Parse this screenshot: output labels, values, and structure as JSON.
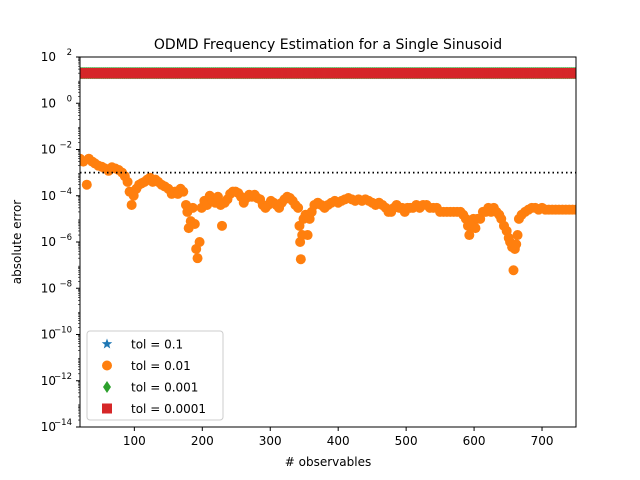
{
  "chart_data": {
    "type": "scatter",
    "title": "ODMD Frequency Estimation for a Single Sinusoid",
    "xlabel": "# observables",
    "ylabel": "absolute error",
    "xlim": [
      20,
      750
    ],
    "ylim_log10": [
      -14,
      2
    ],
    "yscale": "log",
    "x_ticks": [
      100,
      200,
      300,
      400,
      500,
      600,
      700
    ],
    "x_tick_labels": [
      "100",
      "200",
      "300",
      "400",
      "500",
      "600",
      "700"
    ],
    "y_ticks_log10": [
      2,
      0,
      -2,
      -4,
      -6,
      -8,
      -10,
      -12,
      -14
    ],
    "y_tick_labels": [
      {
        "base": "10",
        "exp": "2"
      },
      {
        "base": "10",
        "exp": "0"
      },
      {
        "base": "10",
        "exp": "−2"
      },
      {
        "base": "10",
        "exp": "−4"
      },
      {
        "base": "10",
        "exp": "−6"
      },
      {
        "base": "10",
        "exp": "−8"
      },
      {
        "base": "10",
        "exp": "−10"
      },
      {
        "base": "10",
        "exp": "−12"
      },
      {
        "base": "10",
        "exp": "−14"
      }
    ],
    "reference_line": {
      "y": 0.001,
      "style": "dotted",
      "color": "#000000"
    },
    "grid": false,
    "legend_position": "lower-left",
    "series": [
      {
        "name": "tol = 0.1",
        "marker": "star",
        "color": "#1f77b4",
        "x_range": [
          20,
          750
        ],
        "y": 20
      },
      {
        "name": "tol = 0.01",
        "marker": "circle",
        "color": "#ff7f0e",
        "points": [
          [
            20,
            0.004
          ],
          [
            25,
            0.003
          ],
          [
            30,
            0.0003
          ],
          [
            33,
            0.004
          ],
          [
            38,
            0.003
          ],
          [
            42,
            0.0025
          ],
          [
            47,
            0.002
          ],
          [
            52,
            0.0018
          ],
          [
            57,
            0.0015
          ],
          [
            62,
            0.0012
          ],
          [
            67,
            0.0017
          ],
          [
            72,
            0.0015
          ],
          [
            77,
            0.0013
          ],
          [
            82,
            0.001
          ],
          [
            86,
            0.0007
          ],
          [
            90,
            0.0004
          ],
          [
            93,
            0.00015
          ],
          [
            96,
            4e-05
          ],
          [
            99,
            0.0001
          ],
          [
            103,
            0.0002
          ],
          [
            107,
            0.0003
          ],
          [
            111,
            0.00035
          ],
          [
            115,
            0.0004
          ],
          [
            119,
            0.0005
          ],
          [
            123,
            0.0006
          ],
          [
            127,
            0.0004
          ],
          [
            131,
            0.0005
          ],
          [
            135,
            0.0004
          ],
          [
            140,
            0.0003
          ],
          [
            145,
            0.00025
          ],
          [
            150,
            0.0002
          ],
          [
            155,
            0.00012
          ],
          [
            160,
            0.00015
          ],
          [
            164,
            0.00012
          ],
          [
            168,
            0.0002
          ],
          [
            172,
            0.00015
          ],
          [
            176,
            4e-05
          ],
          [
            178,
            2e-05
          ],
          [
            180,
            4e-06
          ],
          [
            183,
            8e-06
          ],
          [
            186,
            3e-05
          ],
          [
            189,
            6e-06
          ],
          [
            191,
            5e-07
          ],
          [
            193,
            2e-07
          ],
          [
            196,
            1e-06
          ],
          [
            199,
            3e-05
          ],
          [
            203,
            6e-05
          ],
          [
            207,
            4e-05
          ],
          [
            211,
            0.0001
          ],
          [
            215,
            6e-05
          ],
          [
            219,
            5e-05
          ],
          [
            223,
            9e-05
          ],
          [
            227,
            4e-05
          ],
          [
            229,
            5e-06
          ],
          [
            233,
            5e-05
          ],
          [
            237,
            7e-05
          ],
          [
            241,
            0.00012
          ],
          [
            245,
            0.00015
          ],
          [
            249,
            0.00015
          ],
          [
            253,
            0.00013
          ],
          [
            257,
            9e-05
          ],
          [
            261,
            5e-05
          ],
          [
            265,
            8e-05
          ],
          [
            269,
            0.00011
          ],
          [
            273,
            9e-05
          ],
          [
            277,
            0.00011
          ],
          [
            281,
            8e-05
          ],
          [
            285,
            7e-05
          ],
          [
            289,
            4e-05
          ],
          [
            293,
            3e-05
          ],
          [
            297,
            4e-05
          ],
          [
            301,
            6e-05
          ],
          [
            305,
            5e-05
          ],
          [
            309,
            4e-05
          ],
          [
            313,
            3e-05
          ],
          [
            317,
            5e-05
          ],
          [
            321,
            7e-05
          ],
          [
            325,
            9e-05
          ],
          [
            329,
            8e-05
          ],
          [
            333,
            6e-05
          ],
          [
            337,
            4e-05
          ],
          [
            341,
            3e-05
          ],
          [
            343,
            5e-06
          ],
          [
            344,
            1e-06
          ],
          [
            345,
            1.8e-07
          ],
          [
            347,
            2e-06
          ],
          [
            349,
            1e-05
          ],
          [
            352,
            1.5e-05
          ],
          [
            355,
            2e-06
          ],
          [
            358,
            1e-05
          ],
          [
            361,
            2e-05
          ],
          [
            365,
            4e-05
          ],
          [
            370,
            5e-05
          ],
          [
            375,
            4e-05
          ],
          [
            380,
            3e-05
          ],
          [
            385,
            4e-05
          ],
          [
            390,
            5e-05
          ],
          [
            395,
            6e-05
          ],
          [
            400,
            5e-05
          ],
          [
            405,
            6e-05
          ],
          [
            410,
            7e-05
          ],
          [
            415,
            8e-05
          ],
          [
            420,
            7e-05
          ],
          [
            425,
            6e-05
          ],
          [
            430,
            7e-05
          ],
          [
            435,
            6e-05
          ],
          [
            440,
            7e-05
          ],
          [
            445,
            6e-05
          ],
          [
            450,
            5e-05
          ],
          [
            455,
            4e-05
          ],
          [
            460,
            5e-05
          ],
          [
            465,
            4e-05
          ],
          [
            470,
            3e-05
          ],
          [
            474,
            2e-05
          ],
          [
            478,
            2e-05
          ],
          [
            482,
            3e-05
          ],
          [
            486,
            4e-05
          ],
          [
            490,
            3e-05
          ],
          [
            494,
            3e-05
          ],
          [
            498,
            2e-05
          ],
          [
            502,
            3e-05
          ],
          [
            506,
            3e-05
          ],
          [
            510,
            3e-05
          ],
          [
            515,
            4e-05
          ],
          [
            520,
            3e-05
          ],
          [
            525,
            4e-05
          ],
          [
            530,
            4e-05
          ],
          [
            535,
            3e-05
          ],
          [
            540,
            3e-05
          ],
          [
            545,
            3e-05
          ],
          [
            550,
            2e-05
          ],
          [
            555,
            2e-05
          ],
          [
            560,
            2e-05
          ],
          [
            565,
            2e-05
          ],
          [
            570,
            2e-05
          ],
          [
            575,
            2e-05
          ],
          [
            580,
            2e-05
          ],
          [
            584,
            1.5e-05
          ],
          [
            588,
            1e-05
          ],
          [
            591,
            5e-06
          ],
          [
            593,
            2e-06
          ],
          [
            596,
            5e-06
          ],
          [
            599,
            1e-05
          ],
          [
            602,
            4e-06
          ],
          [
            605,
            1e-05
          ],
          [
            609,
            1e-05
          ],
          [
            613,
            2e-05
          ],
          [
            617,
            2e-05
          ],
          [
            621,
            3e-05
          ],
          [
            625,
            2e-05
          ],
          [
            629,
            3e-05
          ],
          [
            633,
            2e-05
          ],
          [
            637,
            1.5e-05
          ],
          [
            640,
            1e-05
          ],
          [
            644,
            5e-06
          ],
          [
            648,
            3e-06
          ],
          [
            651,
            1.5e-06
          ],
          [
            653,
            1e-06
          ],
          [
            656,
            6e-07
          ],
          [
            658,
            6e-08
          ],
          [
            660,
            5e-07
          ],
          [
            662,
            8e-07
          ],
          [
            664,
            2e-06
          ],
          [
            666,
            1e-05
          ],
          [
            670,
            1.5e-05
          ],
          [
            675,
            2e-05
          ],
          [
            680,
            2.5e-05
          ],
          [
            685,
            3e-05
          ],
          [
            690,
            3e-05
          ],
          [
            695,
            2.5e-05
          ],
          [
            700,
            3e-05
          ],
          [
            705,
            2.5e-05
          ],
          [
            710,
            2.5e-05
          ],
          [
            715,
            2.5e-05
          ],
          [
            720,
            2.5e-05
          ],
          [
            725,
            2.5e-05
          ],
          [
            730,
            2.5e-05
          ],
          [
            735,
            2.5e-05
          ],
          [
            740,
            2.5e-05
          ],
          [
            745,
            2.5e-05
          ],
          [
            750,
            2.5e-05
          ]
        ]
      },
      {
        "name": "tol = 0.001",
        "marker": "diamond",
        "color": "#2ca02c",
        "x_range": [
          20,
          750
        ],
        "y": 20
      },
      {
        "name": "tol = 0.0001",
        "marker": "square",
        "color": "#d62728",
        "x_range": [
          20,
          750
        ],
        "y": 20
      }
    ]
  }
}
